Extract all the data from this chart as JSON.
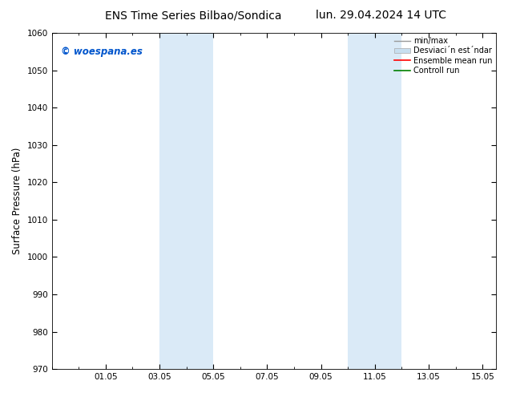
{
  "title_left": "ENS Time Series Bilbao/Sondica",
  "title_right": "lun. 29.04.2024 14 UTC",
  "ylabel": "Surface Pressure (hPa)",
  "ylim": [
    970,
    1060
  ],
  "yticks": [
    970,
    980,
    990,
    1000,
    1010,
    1020,
    1030,
    1040,
    1050,
    1060
  ],
  "xtick_labels": [
    "01.05",
    "03.05",
    "05.05",
    "07.05",
    "09.05",
    "11.05",
    "13.05",
    "15.05"
  ],
  "xtick_positions": [
    2,
    4,
    6,
    8,
    10,
    12,
    14,
    16
  ],
  "xlim": [
    0,
    16.5
  ],
  "shaded_bands": [
    {
      "x_start": 4.0,
      "x_end": 5.0
    },
    {
      "x_start": 5.0,
      "x_end": 6.0
    },
    {
      "x_start": 11.0,
      "x_end": 12.0
    },
    {
      "x_start": 12.0,
      "x_end": 13.0
    }
  ],
  "band_color": "#daeaf7",
  "watermark_text": "© woespana.es",
  "watermark_color": "#0055cc",
  "legend_entries": [
    {
      "label": "min/max",
      "color": "#999999",
      "lw": 1.0
    },
    {
      "label": "Desviaci´n est´ndar",
      "color": "#c8dff0",
      "lw": 5
    },
    {
      "label": "Ensemble mean run",
      "color": "red",
      "lw": 1.2
    },
    {
      "label": "Controll run",
      "color": "green",
      "lw": 1.2
    }
  ],
  "bg_color": "#ffffff",
  "figsize": [
    6.34,
    4.9
  ],
  "dpi": 100,
  "title_fontsize": 10,
  "axis_label_fontsize": 8.5,
  "tick_fontsize": 7.5,
  "watermark_fontsize": 8.5,
  "legend_fontsize": 7
}
